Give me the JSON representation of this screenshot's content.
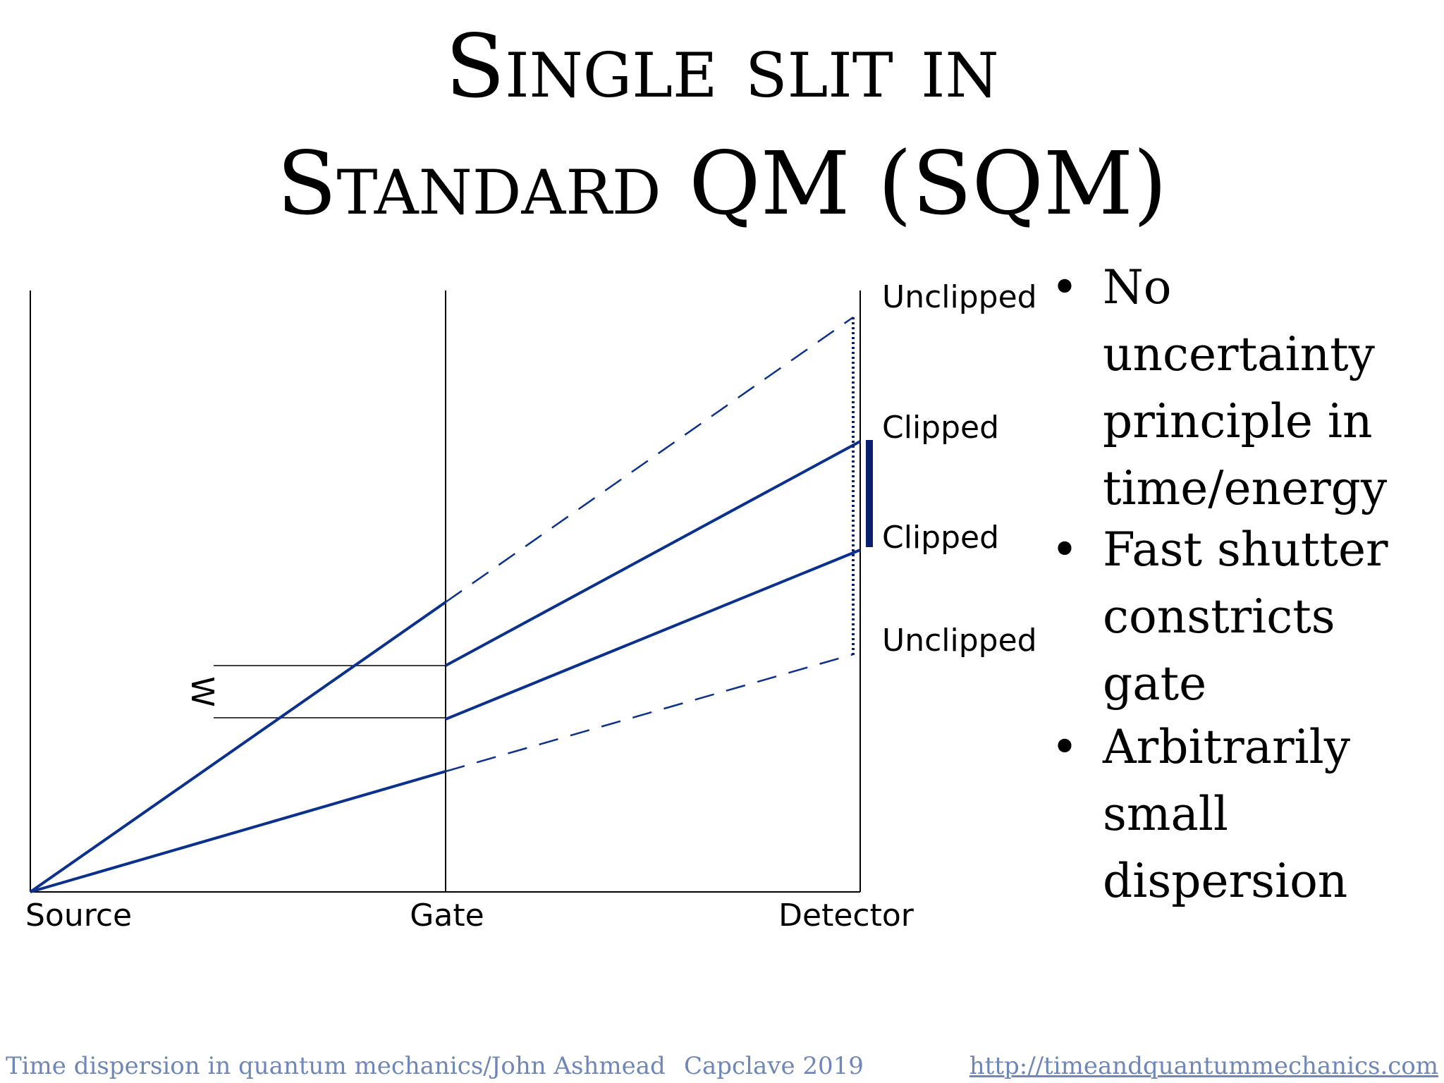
{
  "title": {
    "line1": "Single slit in",
    "line2": "Standard QM (SQM)"
  },
  "diagram": {
    "axis_labels": {
      "source": "Source",
      "gate": "Gate",
      "detector": "Detector"
    },
    "detector_labels": {
      "unclipped_top": "Unclipped",
      "clipped_upper": "Clipped",
      "clipped_lower": "Clipped",
      "unclipped_bottom": "Unclipped"
    },
    "width_label": "W",
    "colors": {
      "ray": "#0b318f",
      "marker": "#0a1f6e",
      "axis": "#000000"
    }
  },
  "bullets": [
    "No uncertainty principle in time/energy",
    "Fast shutter constricts gate",
    "Arbitrarily small dispersion"
  ],
  "bullet_lines": [
    [
      "No uncertainty",
      "principle in",
      "time/energy"
    ],
    [
      "Fast shutter",
      "constricts gate"
    ],
    [
      "Arbitrarily",
      "small",
      "dispersion"
    ]
  ],
  "footer": {
    "left": "Time dispersion in quantum mechanics/John Ashmead",
    "center": "Capclave 2019",
    "right": "http://timeandquantummechanics.com"
  }
}
